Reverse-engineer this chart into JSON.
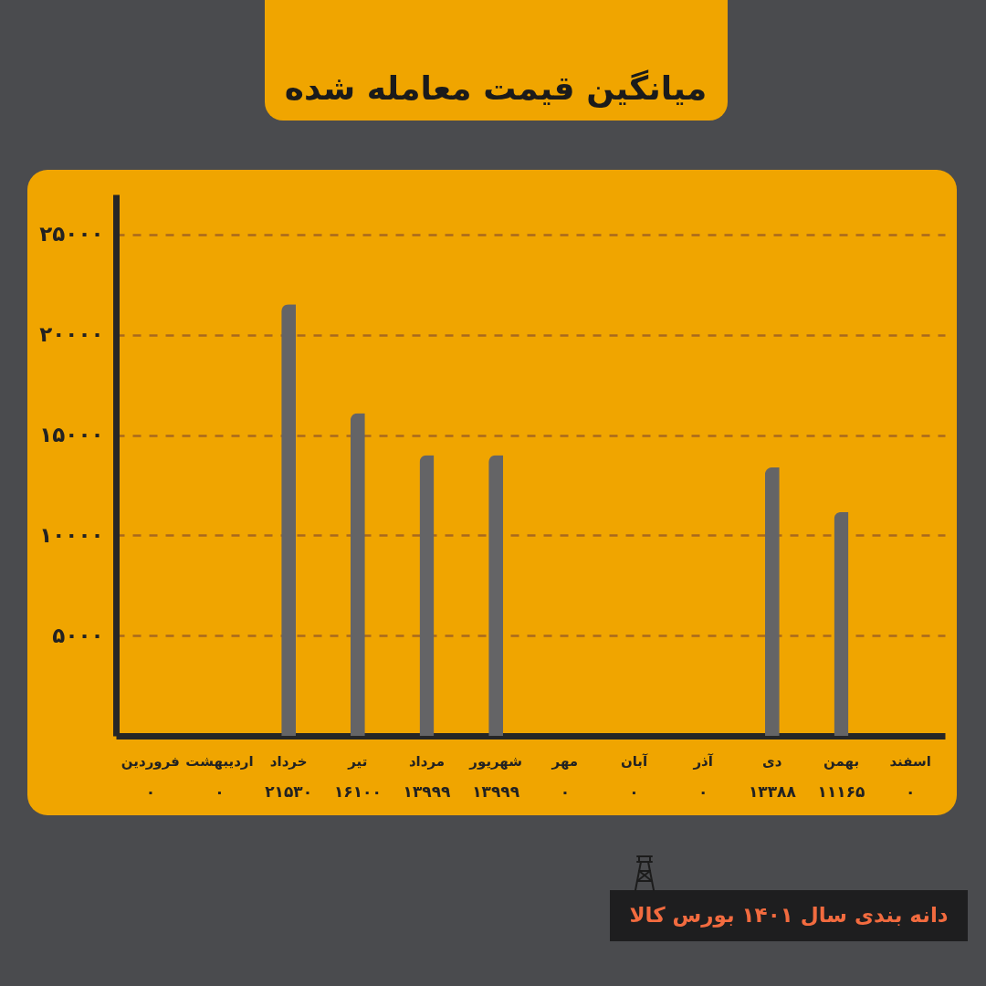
{
  "chart_data": {
    "type": "bar",
    "title": "میانگین قیمت معامله شده",
    "categories": [
      "فروردین",
      "اردیبهشت",
      "خرداد",
      "تیر",
      "مرداد",
      "شهریور",
      "مهر",
      "آبان",
      "آذر",
      "دی",
      "بهمن",
      "اسفند"
    ],
    "values": [
      0,
      0,
      21530,
      16100,
      13999,
      13999,
      0,
      0,
      0,
      13388,
      11165,
      0
    ],
    "value_labels": [
      "۰",
      "۰",
      "۲۱۵۳۰",
      "۱۶۱۰۰",
      "۱۳۹۹۹",
      "۱۳۹۹۹",
      "۰",
      "۰",
      "۰",
      "۱۳۳۸۸",
      "۱۱۱۶۵",
      "۰"
    ],
    "color": "#646466",
    "ylim": [
      0,
      27000
    ],
    "yticks": [
      {
        "value": 5000,
        "label": "۵۰۰۰"
      },
      {
        "value": 10000,
        "label": "۱۰۰۰۰"
      },
      {
        "value": 15000,
        "label": "۱۵۰۰۰"
      },
      {
        "value": 20000,
        "label": "۲۰۰۰۰"
      },
      {
        "value": 25000,
        "label": "۲۵۰۰۰"
      }
    ],
    "grid": "y",
    "annotations": [
      "دانه بندی سال ۱۴۰۱ بورس کالا"
    ]
  }
}
